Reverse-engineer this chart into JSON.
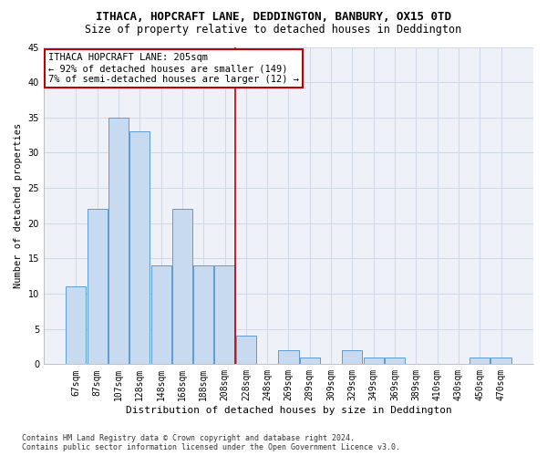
{
  "title": "ITHACA, HOPCRAFT LANE, DEDDINGTON, BANBURY, OX15 0TD",
  "subtitle": "Size of property relative to detached houses in Deddington",
  "xlabel": "Distribution of detached houses by size in Deddington",
  "ylabel": "Number of detached properties",
  "categories": [
    "67sqm",
    "87sqm",
    "107sqm",
    "128sqm",
    "148sqm",
    "168sqm",
    "188sqm",
    "208sqm",
    "228sqm",
    "248sqm",
    "269sqm",
    "289sqm",
    "309sqm",
    "329sqm",
    "349sqm",
    "369sqm",
    "389sqm",
    "410sqm",
    "430sqm",
    "450sqm",
    "470sqm"
  ],
  "values": [
    11,
    22,
    35,
    33,
    14,
    22,
    14,
    14,
    4,
    0,
    2,
    1,
    0,
    2,
    1,
    1,
    0,
    0,
    0,
    1,
    1
  ],
  "bar_color": "#c8daf0",
  "bar_edge_color": "#5b9bd5",
  "vline_color": "#c00000",
  "annotation_line1": "ITHACA HOPCRAFT LANE: 205sqm",
  "annotation_line2": "← 92% of detached houses are smaller (149)",
  "annotation_line3": "7% of semi-detached houses are larger (12) →",
  "annotation_box_color": "#c00000",
  "ylim": [
    0,
    45
  ],
  "yticks": [
    0,
    5,
    10,
    15,
    20,
    25,
    30,
    35,
    40,
    45
  ],
  "grid_color": "#d0d8e8",
  "bg_color": "#eef2f8",
  "footer": "Contains HM Land Registry data © Crown copyright and database right 2024.\nContains public sector information licensed under the Open Government Licence v3.0.",
  "title_fontsize": 9,
  "subtitle_fontsize": 8.5,
  "xlabel_fontsize": 8,
  "ylabel_fontsize": 7.5,
  "tick_fontsize": 7,
  "annotation_fontsize": 7.5,
  "footer_fontsize": 6
}
